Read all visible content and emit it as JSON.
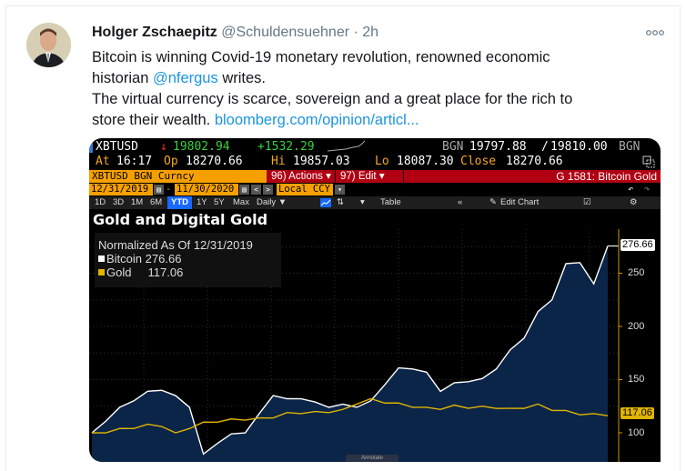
{
  "tweet": {
    "author_name": "Holger Zschaepitz",
    "handle": "@Schuldensuehner",
    "separator": "·",
    "time": "2h",
    "more_icon": "ellipsis-icon",
    "text_lines": [
      "Bitcoin is winning Covid-19 monetary revolution, renowned economic",
      "historian ",
      " writes.",
      "The virtual currency is scarce, sovereign and a great place for the rich to",
      "store their wealth. "
    ],
    "mention": "@nfergus",
    "link": "bloomberg.com/opinion/articl..."
  },
  "terminal": {
    "ticker": "XBTUSD",
    "arrow": "↓",
    "last_price": "19802.94",
    "change": "+1532.29",
    "bid_ask_source": "BGN",
    "bid": "19797.88",
    "ask": "19810.00",
    "bid_ask_source2": "BGN",
    "at_label": "At",
    "time": "16:17",
    "open_label": "Op",
    "open": "18270.66",
    "high_label": "Hi",
    "high": "19857.03",
    "low_label": "Lo",
    "low": "18087.30",
    "close_label": "Close",
    "close": "18270.66",
    "security": "XBTUSD BGN Curncy",
    "actions_label": "96) Actions ▾",
    "edit_label": "97) Edit ▾",
    "function_title": "G 1581: Bitcoin Gold",
    "date_start": "12/31/2019",
    "date_sep": "-",
    "date_end": "11/30/2020",
    "prev_label": "<",
    "next_label": ">",
    "currency": "Local CCY",
    "ranges": [
      "1D",
      "3D",
      "1M",
      "6M",
      "YTD",
      "1Y",
      "5Y",
      "Max"
    ],
    "active_range": "YTD",
    "frequency": "Daily ▼",
    "table_label": "Table",
    "collapse_label": "«",
    "edit_chart_label": "Edit Chart",
    "undo_icon": "↶",
    "redo_icon": "↷"
  },
  "chart_data": {
    "type": "line",
    "title": "Gold and Digital Gold",
    "subtitle": "Normalized As Of 12/31/2019",
    "xlabel": "",
    "ylabel": "",
    "x_range": [
      "12/31/2019",
      "11/30/2020"
    ],
    "yticks": [
      100,
      150,
      200,
      250
    ],
    "ylim": [
      85,
      285
    ],
    "grid": true,
    "legend_position": "top-left",
    "series": [
      {
        "name": "Bitcoin",
        "color": "#ffffff",
        "last_value": "276.66",
        "fill": "#0b2548",
        "values": [
          100,
          112,
          122,
          130,
          138,
          142,
          135,
          125,
          78,
          90,
          98,
          102,
          118,
          136,
          130,
          132,
          128,
          126,
          127,
          125,
          128,
          145,
          160,
          162,
          157,
          140,
          145,
          148,
          150,
          162,
          178,
          190,
          212,
          225,
          258,
          262,
          240,
          276.66
        ]
      },
      {
        "name": "Gold",
        "color": "#e0b400",
        "last_value": "117.06",
        "values": [
          100,
          101,
          102,
          104,
          107,
          108,
          100,
          105,
          108,
          110,
          112,
          114,
          114,
          115,
          117,
          118,
          119,
          121,
          122,
          128,
          130,
          128,
          127,
          126,
          124,
          123,
          124,
          123,
          124,
          125,
          123,
          124,
          125,
          121,
          120,
          119,
          118,
          117.06
        ]
      }
    ]
  },
  "legend": {
    "title": "Normalized As Of 12/31/2019",
    "items": [
      {
        "label": "Bitcoin",
        "value": "276.66",
        "color": "#ffffff"
      },
      {
        "label": "Gold",
        "value": "117.06",
        "color": "#e0b400"
      }
    ]
  },
  "axis": {
    "ticks": [
      "250",
      "200",
      "150",
      "100"
    ],
    "bitcoin_badge": "276.66",
    "gold_badge": "117.06"
  },
  "annotate_label": "Annotate"
}
